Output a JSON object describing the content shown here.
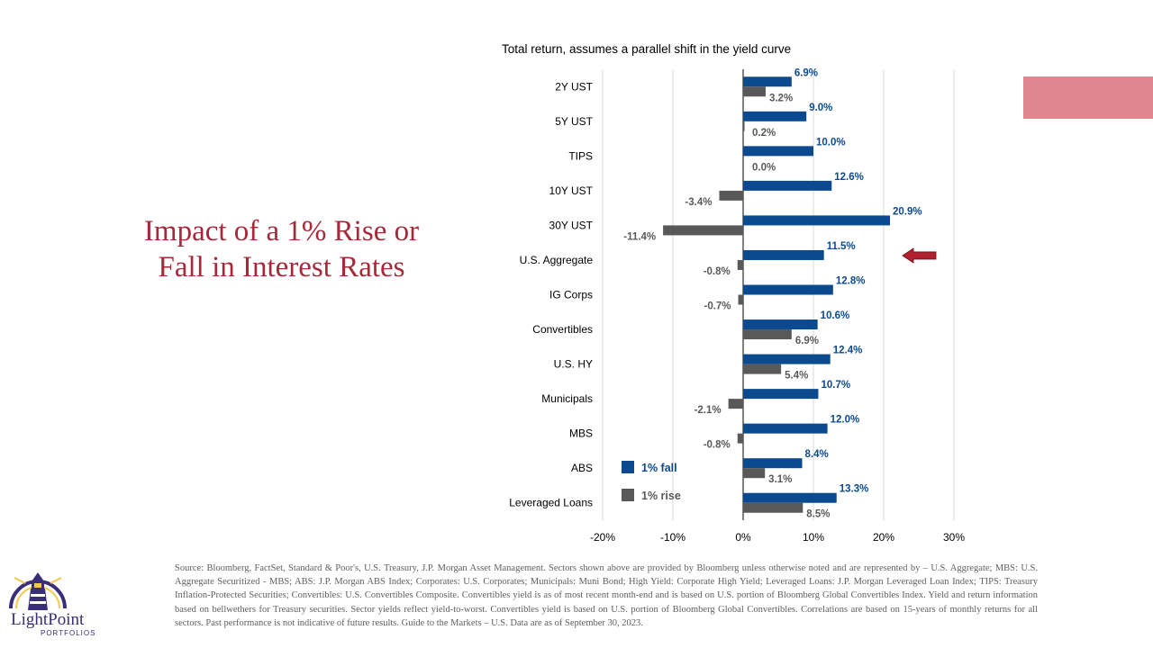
{
  "slide": {
    "title": "Impact of a 1% Rise or Fall in Interest Rates",
    "chart_subtitle": "Total return, assumes a parallel shift in the yield curve",
    "footnote": "Source: Bloomberg, FactSet, Standard & Poor's, U.S. Treasury, J.P. Morgan Asset Management. Sectors shown above are provided by Bloomberg unless otherwise noted and are represented by – U.S. Aggregate; MBS: U.S. Aggregate Securitized - MBS; ABS: J.P. Morgan ABS Index; Corporates: U.S. Corporates; Municipals: Muni Bond; High Yield: Corporate High Yield; Leveraged Loans: J.P. Morgan Leveraged Loan Index; TIPS: Treasury Inflation-Protected Securities; Convertibles: U.S. Convertibles Composite. Convertibles yield is as of most recent month-end and is based on U.S. portion of Bloomberg Global Convertibles Index. Yield and return information based on bellwethers for Treasury securities. Sector yields reflect yield-to-worst. Convertibles yield is based on U.S. portion of Bloomberg Global Convertibles. Correlations are based on 15-years of monthly returns for all sectors. Past performance is not indicative of future results. Guide to the Markets – U.S. Data are as of September 30, 2023.",
    "logo_name": "LightPoint",
    "logo_sub": "PORTFOLIOS"
  },
  "colors": {
    "fall": "#0b4a8f",
    "rise": "#595959",
    "title": "#a6293a",
    "accent": "#e0888f",
    "arrow": "#b0202e"
  },
  "chart_data": {
    "type": "bar",
    "orientation": "horizontal",
    "title": "Total return, assumes a parallel shift in the yield curve",
    "categories": [
      "2Y UST",
      "5Y UST",
      "TIPS",
      "10Y UST",
      "30Y UST",
      "U.S. Aggregate",
      "IG Corps",
      "Convertibles",
      "U.S. HY",
      "Municipals",
      "MBS",
      "ABS",
      "Leveraged Loans"
    ],
    "series": [
      {
        "name": "1% fall",
        "values": [
          6.9,
          9.0,
          10.0,
          12.6,
          20.9,
          11.5,
          12.8,
          10.6,
          12.4,
          10.7,
          12.0,
          8.4,
          13.3
        ]
      },
      {
        "name": "1% rise",
        "values": [
          3.2,
          0.2,
          0.0,
          -3.4,
          -11.4,
          -0.8,
          -0.7,
          6.9,
          5.4,
          -2.1,
          -0.8,
          3.1,
          8.5
        ]
      }
    ],
    "xlim": [
      -20,
      30
    ],
    "xticks": [
      -20,
      -10,
      0,
      10,
      20,
      30
    ],
    "tick_labels": [
      "-20%",
      "-10%",
      "0%",
      "10%",
      "20%",
      "30%"
    ],
    "grid": true,
    "legend": "bottom-left",
    "highlight_category": "U.S. Aggregate"
  }
}
